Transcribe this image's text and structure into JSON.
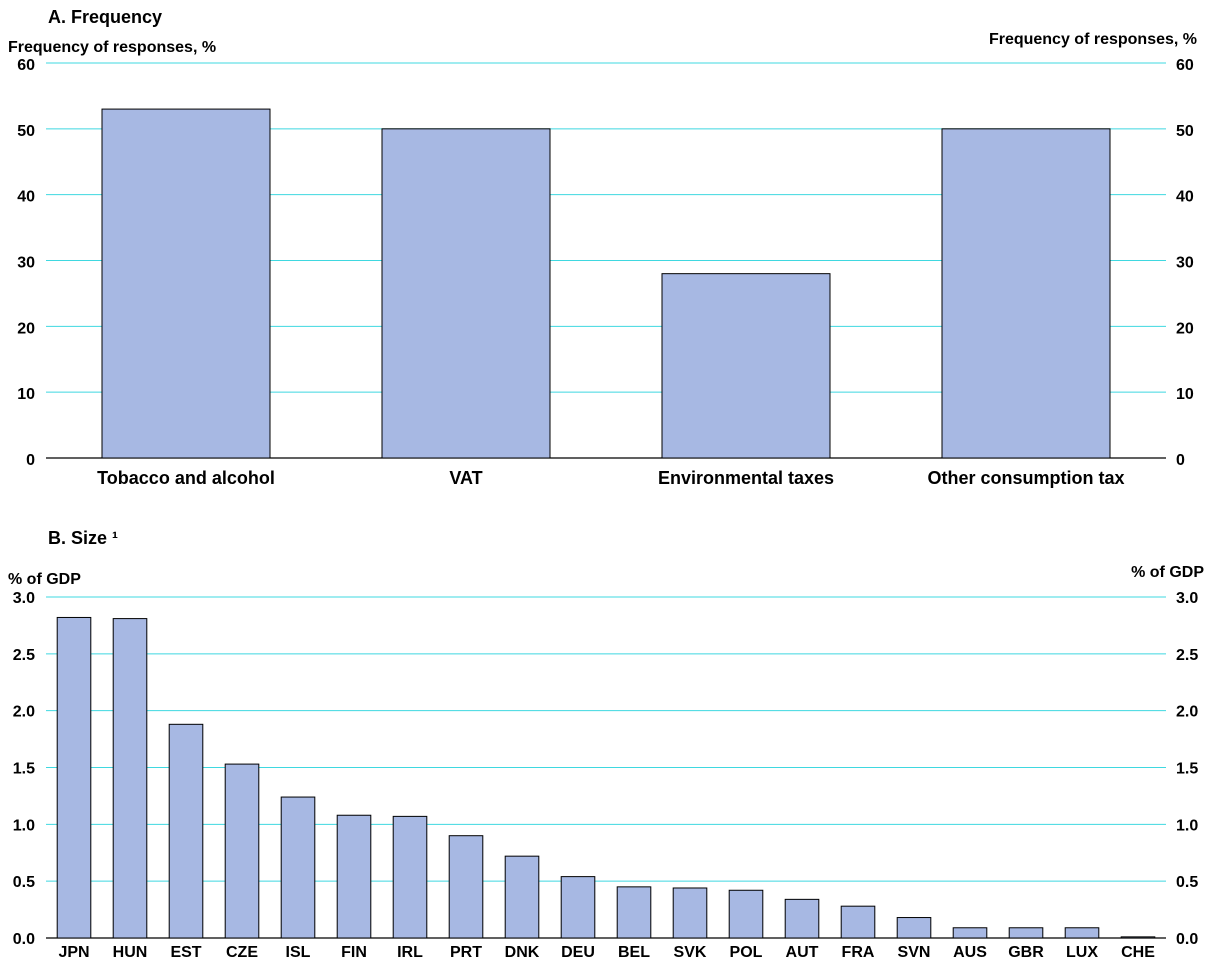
{
  "chart_data": [
    {
      "type": "bar",
      "title": "A. Frequency",
      "ylabel_left": "Frequency of responses, %",
      "ylabel_right": "Frequency of responses, %",
      "ylim": [
        0,
        60
      ],
      "yticks": [
        "0",
        "10",
        "20",
        "30",
        "40",
        "50",
        "60"
      ],
      "grid": true,
      "categories": [
        "Tobacco and alcohol",
        "VAT",
        "Environmental taxes",
        "Other consumption tax"
      ],
      "values": [
        53,
        50,
        28,
        50
      ],
      "bar_color": "#a7b8e3",
      "grid_color": "#3fd8e0"
    },
    {
      "type": "bar",
      "title": "B. Size ¹",
      "ylabel_left": "% of GDP",
      "ylabel_right": "% of GDP",
      "ylim": [
        0,
        3.0
      ],
      "yticks": [
        "0.0",
        "0.5",
        "1.0",
        "1.5",
        "2.0",
        "2.5",
        "3.0"
      ],
      "grid": true,
      "categories": [
        "JPN",
        "HUN",
        "EST",
        "CZE",
        "ISL",
        "FIN",
        "IRL",
        "PRT",
        "DNK",
        "DEU",
        "BEL",
        "SVK",
        "POL",
        "AUT",
        "FRA",
        "SVN",
        "AUS",
        "GBR",
        "LUX",
        "CHE"
      ],
      "values": [
        2.82,
        2.81,
        1.88,
        1.53,
        1.24,
        1.08,
        1.07,
        0.9,
        0.72,
        0.54,
        0.45,
        0.44,
        0.42,
        0.34,
        0.28,
        0.18,
        0.09,
        0.09,
        0.09,
        0.01
      ],
      "bar_color": "#a7b8e3",
      "grid_color": "#3fd8e0"
    }
  ]
}
